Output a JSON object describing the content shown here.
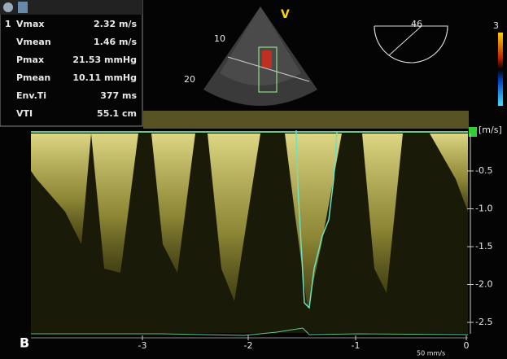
{
  "measurements": {
    "index": "1",
    "rows": [
      [
        "Vmax",
        "2.32 m/s"
      ],
      [
        "Vmean",
        "1.46 m/s"
      ],
      [
        "Pmax",
        "21.53 mmHg"
      ],
      [
        "Pmean",
        "10.11 mmHg"
      ],
      [
        "Env.Ti",
        "377 ms"
      ],
      [
        "VTI",
        "55.1 cm"
      ]
    ]
  },
  "sector": {
    "mode": "V",
    "depth_marks": [
      "10",
      "20"
    ],
    "angle": "46"
  },
  "color_scale": {
    "max": "3"
  },
  "velocity_scale": {
    "unit": "[m/s]",
    "labels": [
      "-0.5",
      "-1.0",
      "-1.5",
      "-2.0",
      "-2.5"
    ]
  },
  "time_axis": {
    "labels": [
      "-3",
      "-2",
      "-1",
      "0"
    ]
  },
  "sweep_speed": "50 mm/s",
  "panel_label": "B"
}
